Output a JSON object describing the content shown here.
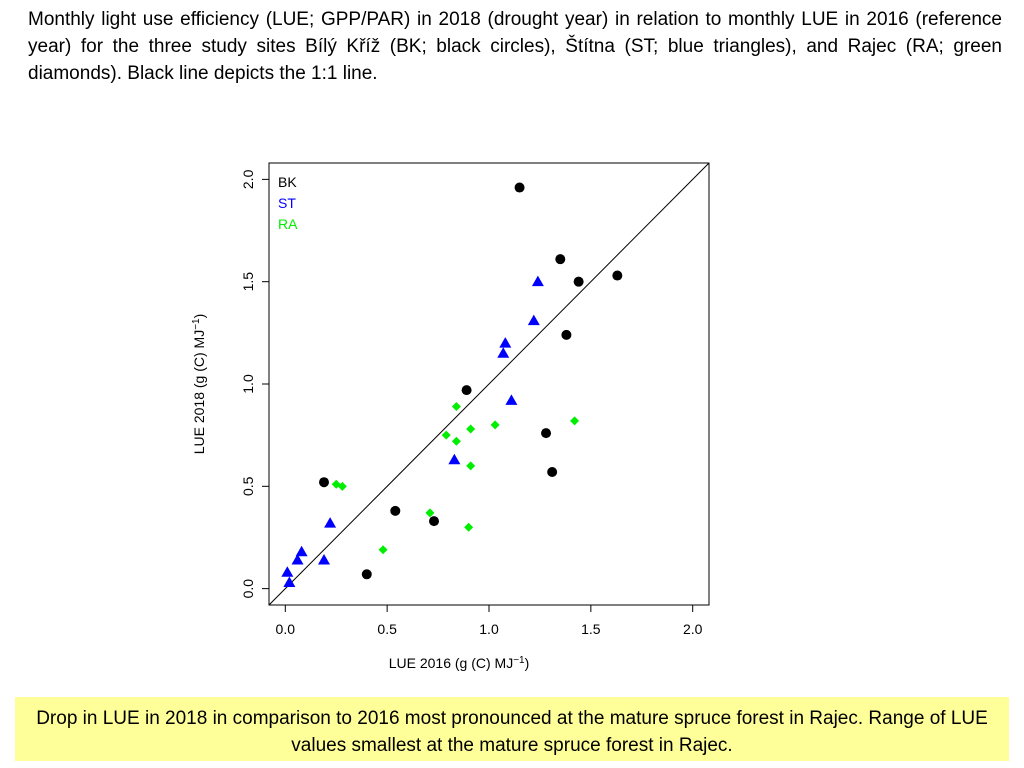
{
  "caption": "Monthly light use efficiency (LUE; GPP/PAR) in 2018 (drought year) in relation to monthly LUE in 2016 (reference year) for the three study sites Bílý Kříž (BK; black circles), Štítna (ST; blue triangles), and Rajec (RA; green diamonds). Black line depicts the 1:1 line.",
  "note": "Drop in LUE in 2018 in comparison to 2016 most pronounced at the mature spruce forest in Rajec. Range of LUE values smallest at the mature spruce forest in Rajec.",
  "chart_data": {
    "type": "scatter",
    "title": "",
    "xlabel": "LUE 2016 (g (C) MJ",
    "xlabel_sup": "−1",
    "xlabel_end": ")",
    "ylabel": "LUE 2018 (g (C) MJ",
    "ylabel_sup": "−1",
    "ylabel_end": ")",
    "xlim": [
      -0.08,
      2.08
    ],
    "ylim": [
      -0.08,
      2.08
    ],
    "xticks": [
      0.0,
      0.5,
      1.0,
      1.5,
      2.0
    ],
    "xtick_labels": [
      "0.0",
      "0.5",
      "1.0",
      "1.5",
      "2.0"
    ],
    "yticks": [
      0.0,
      0.5,
      1.0,
      1.5,
      2.0
    ],
    "ytick_labels": [
      "0.0",
      "0.5",
      "1.0",
      "1.5",
      "2.0"
    ],
    "reference_line": "1:1",
    "legend_position": "top-left",
    "series": [
      {
        "name": "BK",
        "marker": "circle",
        "color": "#000000",
        "x": [
          1.15,
          1.35,
          1.44,
          1.63,
          1.38,
          0.89,
          0.19,
          0.54,
          0.73,
          1.28,
          1.31,
          0.4
        ],
        "y": [
          1.96,
          1.61,
          1.5,
          1.53,
          1.24,
          0.97,
          0.52,
          0.38,
          0.33,
          0.76,
          0.57,
          0.07
        ]
      },
      {
        "name": "ST",
        "marker": "triangle",
        "color": "#0000ff",
        "x": [
          1.24,
          1.22,
          1.08,
          1.07,
          1.11,
          0.83,
          0.22,
          0.08,
          0.06,
          0.19,
          0.01,
          0.02
        ],
        "y": [
          1.5,
          1.31,
          1.2,
          1.15,
          0.92,
          0.63,
          0.32,
          0.18,
          0.14,
          0.14,
          0.08,
          0.03
        ]
      },
      {
        "name": "RA",
        "marker": "diamond",
        "color": "#00ee00",
        "x": [
          0.84,
          0.79,
          0.84,
          0.91,
          1.03,
          0.91,
          1.42,
          0.25,
          0.28,
          0.71,
          0.9,
          0.48
        ],
        "y": [
          0.89,
          0.75,
          0.72,
          0.78,
          0.8,
          0.6,
          0.82,
          0.51,
          0.5,
          0.37,
          0.3,
          0.19
        ]
      }
    ]
  }
}
